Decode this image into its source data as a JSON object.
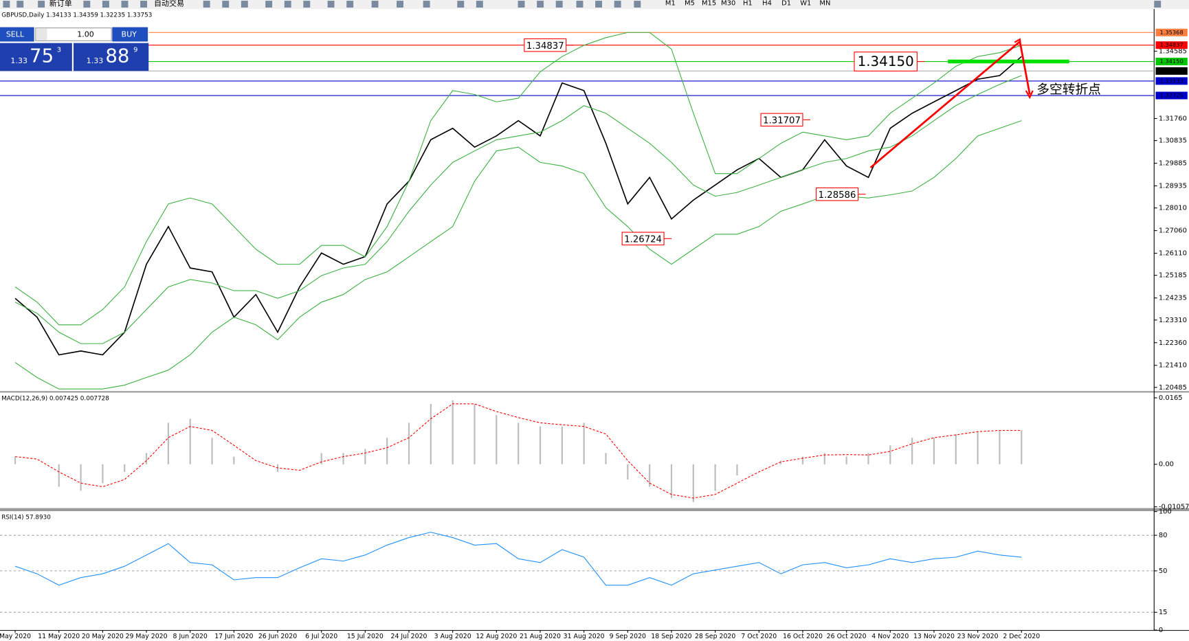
{
  "toolbar": {
    "buttons": [
      "新订单",
      "自动交易"
    ],
    "timeframes": [
      "M1",
      "M5",
      "M15",
      "M30",
      "H1",
      "H4",
      "D1",
      "W1",
      "MN"
    ]
  },
  "trade_panel": {
    "sell": "SELL",
    "lot": "1.00",
    "buy": "BUY",
    "bid": {
      "big": "1.33",
      "main": "75",
      "pip": "3"
    },
    "ask": {
      "big": "1.33",
      "main": "88",
      "pip": "9"
    }
  },
  "chart_data": [
    {
      "type": "line",
      "title": "GBPUSD,Daily 1.34133 1.34359 1.32235 1.33753",
      "categories": [
        "May 2020",
        null,
        "11 May 2020",
        null,
        "20 May 2020",
        null,
        "29 May 2020",
        null,
        "8 Jun 2020",
        null,
        "17 Jun 2020",
        null,
        "26 Jun 2020",
        null,
        "6 Jul 2020",
        null,
        "15 Jul 2020",
        null,
        "24 Jul 2020",
        null,
        "3 Aug 2020",
        null,
        "12 Aug 2020",
        null,
        "21 Aug 2020",
        null,
        "31 Aug 2020",
        null,
        "9 Sep 2020",
        null,
        "18 Sep 2020",
        null,
        "28 Sep 2020",
        null,
        "7 Oct 2020",
        null,
        "16 Oct 2020",
        null,
        "26 Oct 2020",
        null,
        "4 Nov 2020",
        null,
        "13 Nov 2020",
        null,
        "23 Nov 2020",
        null,
        "2 Dec 2020"
      ],
      "series": [
        {
          "color": "#000000",
          "values": [
            1.2422,
            1.2343,
            1.2185,
            1.2201,
            1.2185,
            1.228,
            1.2565,
            1.2723,
            1.2549,
            1.2533,
            1.2343,
            1.2438,
            1.228,
            1.247,
            1.2612,
            1.2565,
            1.2597,
            1.2818,
            1.2913,
            1.3087,
            1.3135,
            1.3056,
            1.3103,
            1.3167,
            1.3103,
            1.3325,
            1.3293,
            1.3072,
            1.2818,
            1.2929,
            1.2755,
            1.2834,
            1.2897,
            1.2961,
            1.3008,
            1.2929,
            1.2961,
            1.3087,
            1.2977,
            1.2929,
            1.3135,
            1.3198,
            1.3246,
            1.3293,
            1.3341,
            1.3356,
            1.3436
          ]
        },
        {
          "color": "#3cb043",
          "values": [
            1.247,
            1.2406,
            1.2311,
            1.2311,
            1.2375,
            1.247,
            1.266,
            1.2818,
            1.2843,
            1.2818,
            1.2723,
            1.2628,
            1.2565,
            1.2565,
            1.2644,
            1.2644,
            1.2596,
            1.2723,
            1.2913,
            1.3167,
            1.3293,
            1.3277,
            1.3246,
            1.3261,
            1.3372,
            1.3436,
            1.3483,
            1.3515,
            1.3537,
            1.3537,
            1.3467,
            1.3198,
            1.2945,
            1.2945,
            1.3008,
            1.3072,
            1.3119,
            1.3103,
            1.3087,
            1.3103,
            1.3198,
            1.3261,
            1.3325,
            1.3395,
            1.3436,
            1.3452,
            1.3483
          ]
        },
        {
          "color": "#3cb043",
          "values": [
            1.2406,
            1.2359,
            1.228,
            1.2232,
            1.2232,
            1.228,
            1.2375,
            1.247,
            1.2501,
            1.2486,
            1.2454,
            1.2454,
            1.2422,
            1.2454,
            1.2517,
            1.2549,
            1.2565,
            1.266,
            1.2787,
            1.2897,
            1.2992,
            1.304,
            1.3087,
            1.3103,
            1.3119,
            1.3167,
            1.323,
            1.3198,
            1.3135,
            1.3072,
            1.2992,
            1.2897,
            1.285,
            1.2866,
            1.2897,
            1.2929,
            1.2961,
            1.2992,
            1.3008,
            1.304,
            1.3056,
            1.3103,
            1.3167,
            1.323,
            1.3277,
            1.3319,
            1.3356
          ]
        },
        {
          "color": "#3cb043",
          "values": [
            1.2153,
            1.209,
            1.2042,
            1.2042,
            1.2042,
            1.2058,
            1.209,
            1.2121,
            1.2185,
            1.228,
            1.2343,
            1.2311,
            1.2248,
            1.2343,
            1.2406,
            1.2438,
            1.2501,
            1.2533,
            1.2596,
            1.266,
            1.2723,
            1.2913,
            1.304,
            1.3056,
            1.2992,
            1.2977,
            1.2945,
            1.2802,
            1.2723,
            1.2628,
            1.2565,
            1.2628,
            1.2691,
            1.2691,
            1.2723,
            1.2787,
            1.2818,
            1.285,
            1.285,
            1.2843,
            1.2856,
            1.2872,
            1.2929,
            1.3008,
            1.3103,
            1.3135,
            1.3167
          ]
        }
      ],
      "ylim": [
        1.2033,
        1.3635
      ],
      "yticks": [
        1.34585,
        {
          "value": 1.3176,
          "label": "1.31760"
        },
        1.30835,
        1.29885,
        1.28935,
        {
          "value": 1.2801,
          "label": "1.28010"
        },
        {
          "value": 1.2706,
          "label": "1.27060"
        },
        {
          "value": 1.2611,
          "label": "1.26110"
        },
        1.25185,
        1.24235,
        {
          "value": 1.2331,
          "label": "1.23310"
        },
        {
          "value": 1.2236,
          "label": "1.22360"
        },
        {
          "value": 1.2141,
          "label": "1.21410"
        },
        1.20485
      ],
      "hlines": [
        {
          "value": 1.35368,
          "color": "#ff7f3f"
        },
        {
          "value": 1.34837,
          "color": "#ff0000"
        },
        {
          "value": 1.3415,
          "label": "1.34150",
          "color": "#00c800"
        },
        {
          "value": 1.33333,
          "color": "#0000cc"
        },
        {
          "value": 1.32725,
          "color": "#0000cc"
        }
      ],
      "current_price": 1.33753,
      "annotations": [
        1.34837,
        {
          "value": 1.3415,
          "label": "1.34150"
        },
        1.31707,
        1.28586,
        1.26724
      ],
      "note": "多空转折点"
    },
    {
      "type": "macd",
      "title": "MACD(12,26,9) 0.007425 0.007728",
      "series": [
        {
          "type": "bar",
          "color": "#bdbdbd",
          "values": [
            0.0019,
            0,
            -0.0056,
            -0.0066,
            -0.0047,
            -0.0019,
            0.0028,
            0.0103,
            0.0113,
            0.0066,
            0.0019,
            0,
            -0.0019,
            0,
            0.0028,
            0.0028,
            0.0038,
            0.0066,
            0.0103,
            0.015,
            0.0159,
            0.015,
            0.0122,
            0.0103,
            0.0094,
            0.0094,
            0.0103,
            0.0028,
            -0.0038,
            -0.0056,
            -0.0084,
            -0.0094,
            -0.0066,
            -0.0028,
            0,
            0.0009,
            0.0019,
            0.0028,
            0.0019,
            0.0028,
            0.0047,
            0.0066,
            0.0066,
            0.0075,
            0.0081,
            0.0084,
            0.0084
          ]
        },
        {
          "type": "dashed",
          "color": "#ff0000",
          "values": [
            0.0019,
            0.0013,
            -0.0019,
            -0.0047,
            -0.0056,
            -0.0038,
            0.0009,
            0.0066,
            0.0094,
            0.0084,
            0.0047,
            0.0009,
            -0.0009,
            -0.0015,
            0.0006,
            0.0019,
            0.0028,
            0.0041,
            0.0066,
            0.0113,
            0.015,
            0.015,
            0.0131,
            0.0116,
            0.0103,
            0.0098,
            0.0094,
            0.0075,
            0.0009,
            -0.0047,
            -0.0075,
            -0.0084,
            -0.0075,
            -0.0047,
            -0.0019,
            0.0006,
            0.0015,
            0.0023,
            0.0024,
            0.0023,
            0.0032,
            0.0051,
            0.0066,
            0.0073,
            0.0081,
            0.0084,
            0.0084
          ]
        }
      ],
      "ylim": [
        -0.0109,
        0.0178
      ],
      "yticks": [
        0.0165,
        {
          "value": 0,
          "label": "0.00"
        },
        -0.010571
      ]
    },
    {
      "type": "line",
      "title": "RSI(14) 57.8930",
      "series": [
        {
          "color": "#1e90ff",
          "values": [
            53.9,
            47.5,
            37.9,
            44.3,
            47.5,
            53.9,
            63.4,
            73.0,
            57.0,
            55.1,
            42.4,
            44.3,
            44.3,
            52.6,
            60.2,
            58.3,
            63.4,
            71.7,
            78.1,
            82.6,
            78.1,
            71.7,
            73.0,
            60.2,
            57.0,
            67.9,
            61.5,
            37.9,
            37.9,
            44.3,
            37.9,
            47.5,
            50.7,
            53.9,
            57.0,
            47.5,
            55.1,
            57.0,
            52.6,
            55.1,
            60.2,
            57.0,
            60.2,
            61.5,
            66.6,
            63.4,
            61.5
          ]
        }
      ],
      "ylim": [
        -0.3,
        100.4
      ],
      "yticks": [
        100,
        80,
        50,
        15,
        0
      ],
      "levels": [
        80,
        50,
        15
      ]
    }
  ]
}
